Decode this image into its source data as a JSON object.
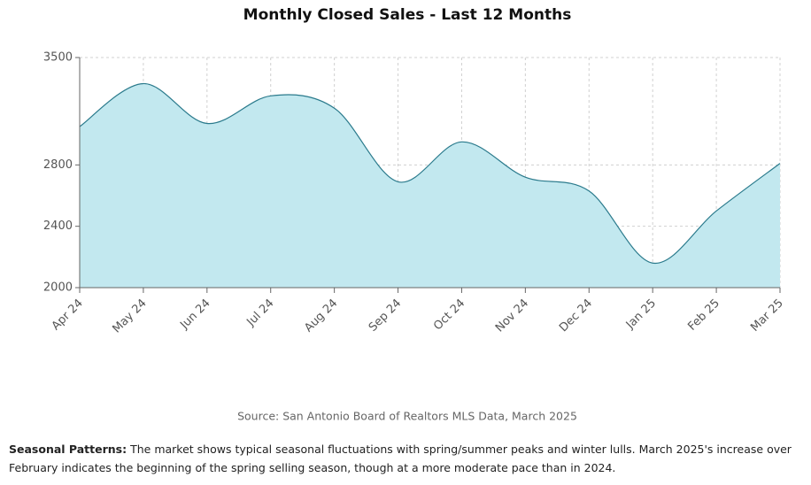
{
  "chart_data": {
    "type": "area",
    "title": "Monthly Closed Sales - Last 12 Months",
    "categories": [
      "Apr 24",
      "May 24",
      "Jun 24",
      "Jul 24",
      "Aug 24",
      "Sep 24",
      "Oct 24",
      "Nov 24",
      "Dec 24",
      "Jan 25",
      "Feb 25",
      "Mar 25"
    ],
    "values": [
      3050,
      3330,
      3070,
      3250,
      3170,
      2690,
      2950,
      2720,
      2630,
      2160,
      2500,
      2810
    ],
    "color": "#2a7a8c",
    "fill": "#c2e8ef",
    "ylim": [
      2000,
      3500
    ],
    "yticks": [
      2000,
      2400,
      2800,
      3500
    ],
    "grid": true
  },
  "source": "Source: San Antonio Board of Realtors MLS Data, March 2025",
  "note": {
    "label": "Seasonal Patterns:",
    "text": "The market shows typical seasonal fluctuations with spring/summer peaks and winter lulls. March 2025's increase over February indicates the beginning of the spring selling season, though at a more moderate pace than in 2024."
  }
}
